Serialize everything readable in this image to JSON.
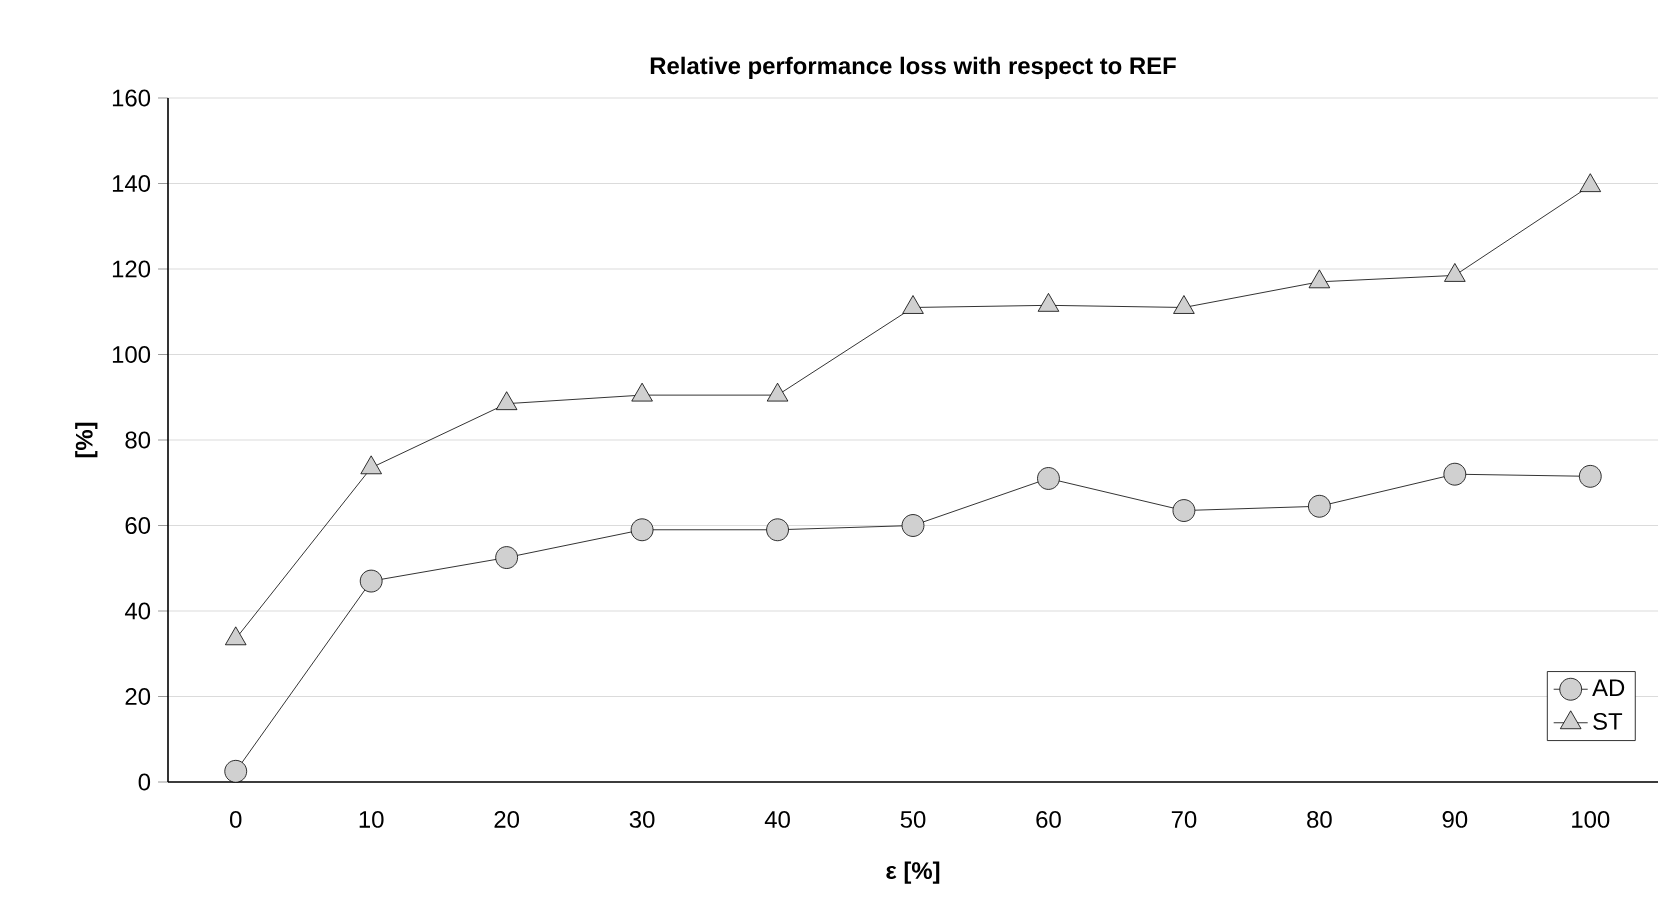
{
  "chart_data": {
    "type": "line",
    "title": "Relative performance loss with respect to REF",
    "xlabel": "ε [%]",
    "ylabel": "[%]",
    "categories": [
      "0",
      "10",
      "20",
      "30",
      "40",
      "50",
      "60",
      "70",
      "80",
      "90",
      "100"
    ],
    "series": [
      {
        "name": "AD",
        "color": "#d0d0d0",
        "marker": "circle",
        "values": [
          2.5,
          47,
          52.5,
          59,
          59,
          60,
          71,
          63.5,
          64.5,
          72,
          71.5
        ]
      },
      {
        "name": "ST",
        "color": "#d0d0d0",
        "marker": "triangle",
        "values": [
          33.5,
          73.5,
          88.5,
          90.5,
          90.5,
          111,
          111.5,
          111,
          117,
          118.5,
          139.5
        ]
      }
    ],
    "ylim": [
      0,
      160
    ],
    "yticks": [
      0,
      20,
      40,
      60,
      80,
      100,
      120,
      140,
      160
    ],
    "grid": "y",
    "legend": "bottom right",
    "line_style": "solid"
  }
}
